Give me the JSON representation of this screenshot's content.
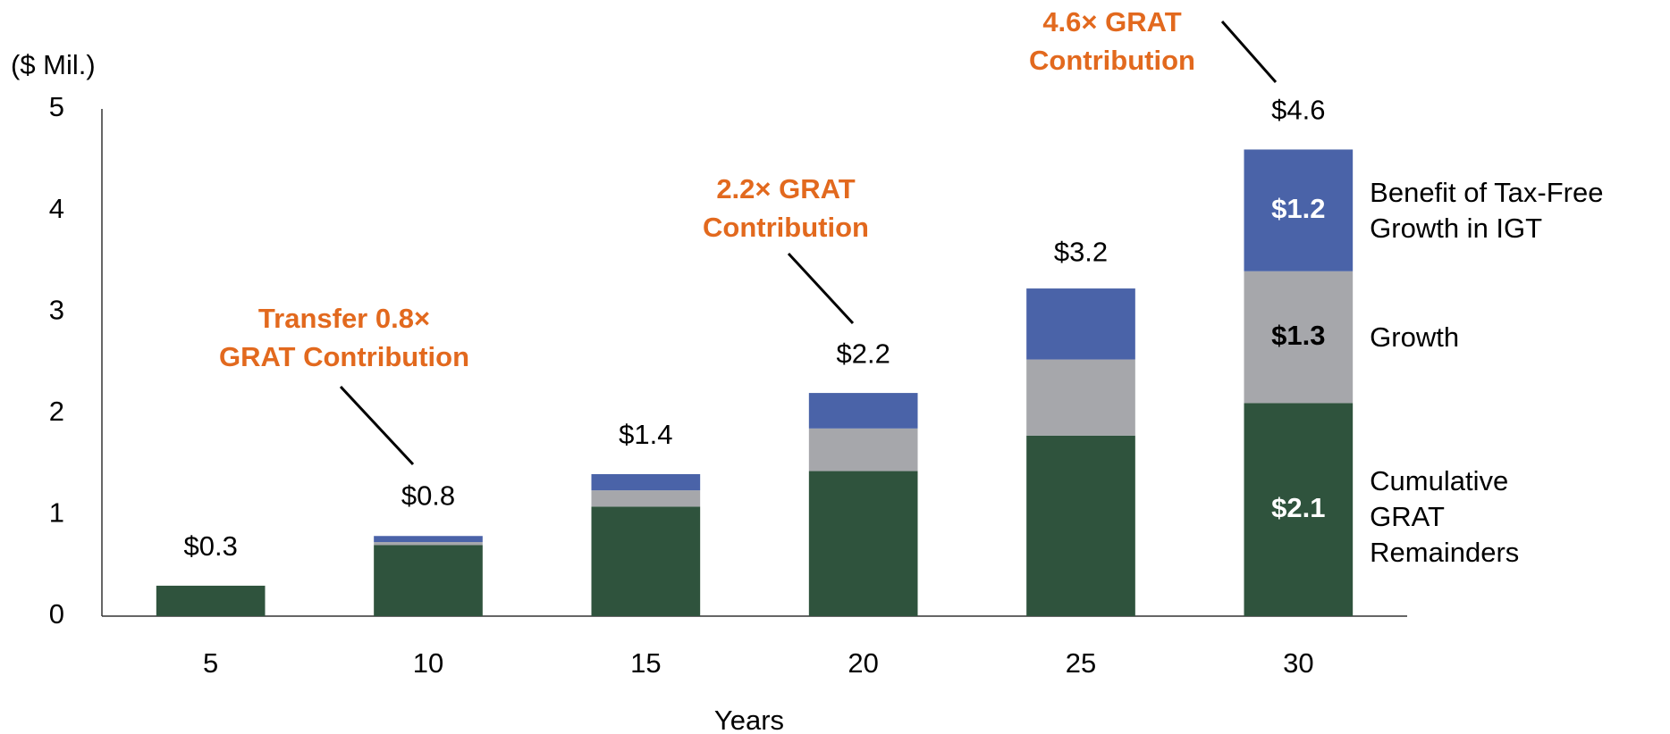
{
  "chart_data": {
    "type": "stacked_bar",
    "y_unit_label": "($ Mil.)",
    "x_label": "Years",
    "categories": [
      "5",
      "10",
      "15",
      "20",
      "25",
      "30"
    ],
    "ylim": [
      0,
      5
    ],
    "yticks": [
      0,
      1,
      2,
      3,
      4,
      5
    ],
    "series": [
      {
        "name": "Cumulative\nGRAT\nRemainders",
        "color": "#2f533d",
        "values": [
          0.3,
          0.7,
          1.08,
          1.43,
          1.78,
          2.1
        ],
        "value_labels": [
          null,
          null,
          null,
          null,
          null,
          "$2.1"
        ]
      },
      {
        "name": "Growth",
        "color": "#a6a7ab",
        "values": [
          0,
          0.03,
          0.16,
          0.42,
          0.75,
          1.3
        ],
        "value_labels": [
          null,
          null,
          null,
          null,
          null,
          "$1.3"
        ]
      },
      {
        "name": "Benefit of Tax-Free\nGrowth in IGT",
        "color": "#4a63a8",
        "values": [
          0,
          0.06,
          0.16,
          0.35,
          0.7,
          1.2
        ],
        "value_labels": [
          null,
          null,
          null,
          null,
          null,
          "$1.2"
        ]
      }
    ],
    "totals": [
      0.3,
      0.8,
      1.4,
      2.2,
      3.2,
      4.6
    ],
    "total_labels": [
      "$0.3",
      "$0.8",
      "$1.4",
      "$2.2",
      "$3.2",
      "$4.6"
    ],
    "annotations": [
      "Transfer 0.8×\nGRAT Contribution",
      "2.2× GRAT\nContribution",
      "4.6× GRAT\nContribution"
    ]
  }
}
